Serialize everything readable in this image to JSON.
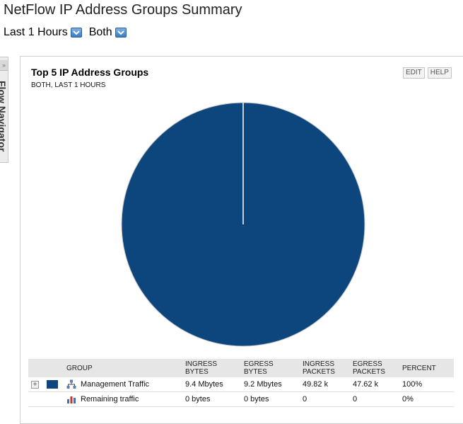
{
  "header": {
    "title": "NetFlow IP Address Groups Summary",
    "filters": [
      {
        "label": "Last 1 Hours"
      },
      {
        "label": "Both"
      }
    ]
  },
  "side_nav": {
    "label": "Flow Navigator"
  },
  "panel": {
    "title": "Top 5 IP Address Groups",
    "subtitle": "BOTH, LAST 1 HOURS",
    "edit_label": "EDIT",
    "help_label": "HELP"
  },
  "chart_data": {
    "type": "pie",
    "categories": [
      "Management Traffic",
      "Remaining traffic"
    ],
    "values": [
      100,
      0
    ],
    "colors": [
      "#0d467c",
      "#ffffff"
    ]
  },
  "legend_table": {
    "headers": {
      "group": "GROUP",
      "ingress_bytes": "INGRESS BYTES",
      "egress_bytes": "EGRESS BYTES",
      "ingress_packets": "INGRESS PACKETS",
      "egress_packets": "EGRESS PACKETS",
      "percent": "PERCENT"
    },
    "rows": [
      {
        "name": "Management Traffic",
        "ingress_bytes": "9.4 Mbytes",
        "egress_bytes": "9.2 Mbytes",
        "ingress_packets": "49.82 k",
        "egress_packets": "47.62 k",
        "percent": "100%",
        "color": "#0d467c",
        "icon": "network-group-icon",
        "expand_symbol": "+"
      },
      {
        "name": "Remaining traffic",
        "ingress_bytes": "0 bytes",
        "egress_bytes": "0 bytes",
        "ingress_packets": "0",
        "egress_packets": "0",
        "percent": "0%",
        "icon": "bar-chart-icon"
      }
    ]
  },
  "colors": {
    "accent": "#0d467c",
    "header_bg": "#e6e6e6"
  }
}
